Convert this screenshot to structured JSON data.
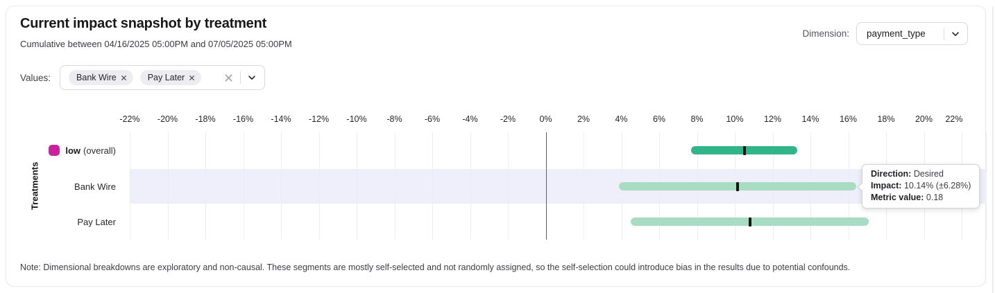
{
  "card": {
    "title": "Current impact snapshot by treatment",
    "subtitle": "Cumulative between 04/16/2025 05:00PM and 07/05/2025 05:00PM",
    "note": "Note: Dimensional breakdowns are exploratory and non-causal. These segments are mostly self-selected and not randomly assigned, so the self-selection could introduce bias in the results due to potential confounds."
  },
  "dimension": {
    "label": "Dimension:",
    "selected": "payment_type"
  },
  "values_filter": {
    "label": "Values:",
    "chips": [
      {
        "label": "Bank Wire"
      },
      {
        "label": "Pay Later"
      }
    ]
  },
  "tooltip": {
    "rows": [
      {
        "label": "Direction:",
        "value": "Desired"
      },
      {
        "label": "Impact:",
        "value": "10.14% (±6.28%)"
      },
      {
        "label": "Metric value:",
        "value": "0.18"
      }
    ]
  },
  "chart_data": {
    "type": "bar",
    "variant": "horizontal_interval",
    "title": "Current impact snapshot by treatment",
    "ylabel": "Treatments",
    "axis": {
      "min": -22,
      "max": 22,
      "step": 2,
      "suffix": "%",
      "zero_line": 0,
      "grid": true
    },
    "rows": [
      {
        "label": "low",
        "suffix": "(overall)",
        "swatch_color": "#cb21a0",
        "impact_pct": 10.5,
        "ci_low_pct": 7.7,
        "ci_high_pct": 13.3,
        "bar_color": "#31b487",
        "highlighted": false
      },
      {
        "label": "Bank Wire",
        "suffix": "",
        "swatch_color": "",
        "impact_pct": 10.14,
        "ci_low_pct": 3.86,
        "ci_high_pct": 16.42,
        "bar_color": "#a9ddc3",
        "highlighted": true
      },
      {
        "label": "Pay Later",
        "suffix": "",
        "swatch_color": "",
        "impact_pct": 10.8,
        "ci_low_pct": 4.5,
        "ci_high_pct": 17.1,
        "bar_color": "#a9ddc3",
        "highlighted": false
      }
    ]
  }
}
